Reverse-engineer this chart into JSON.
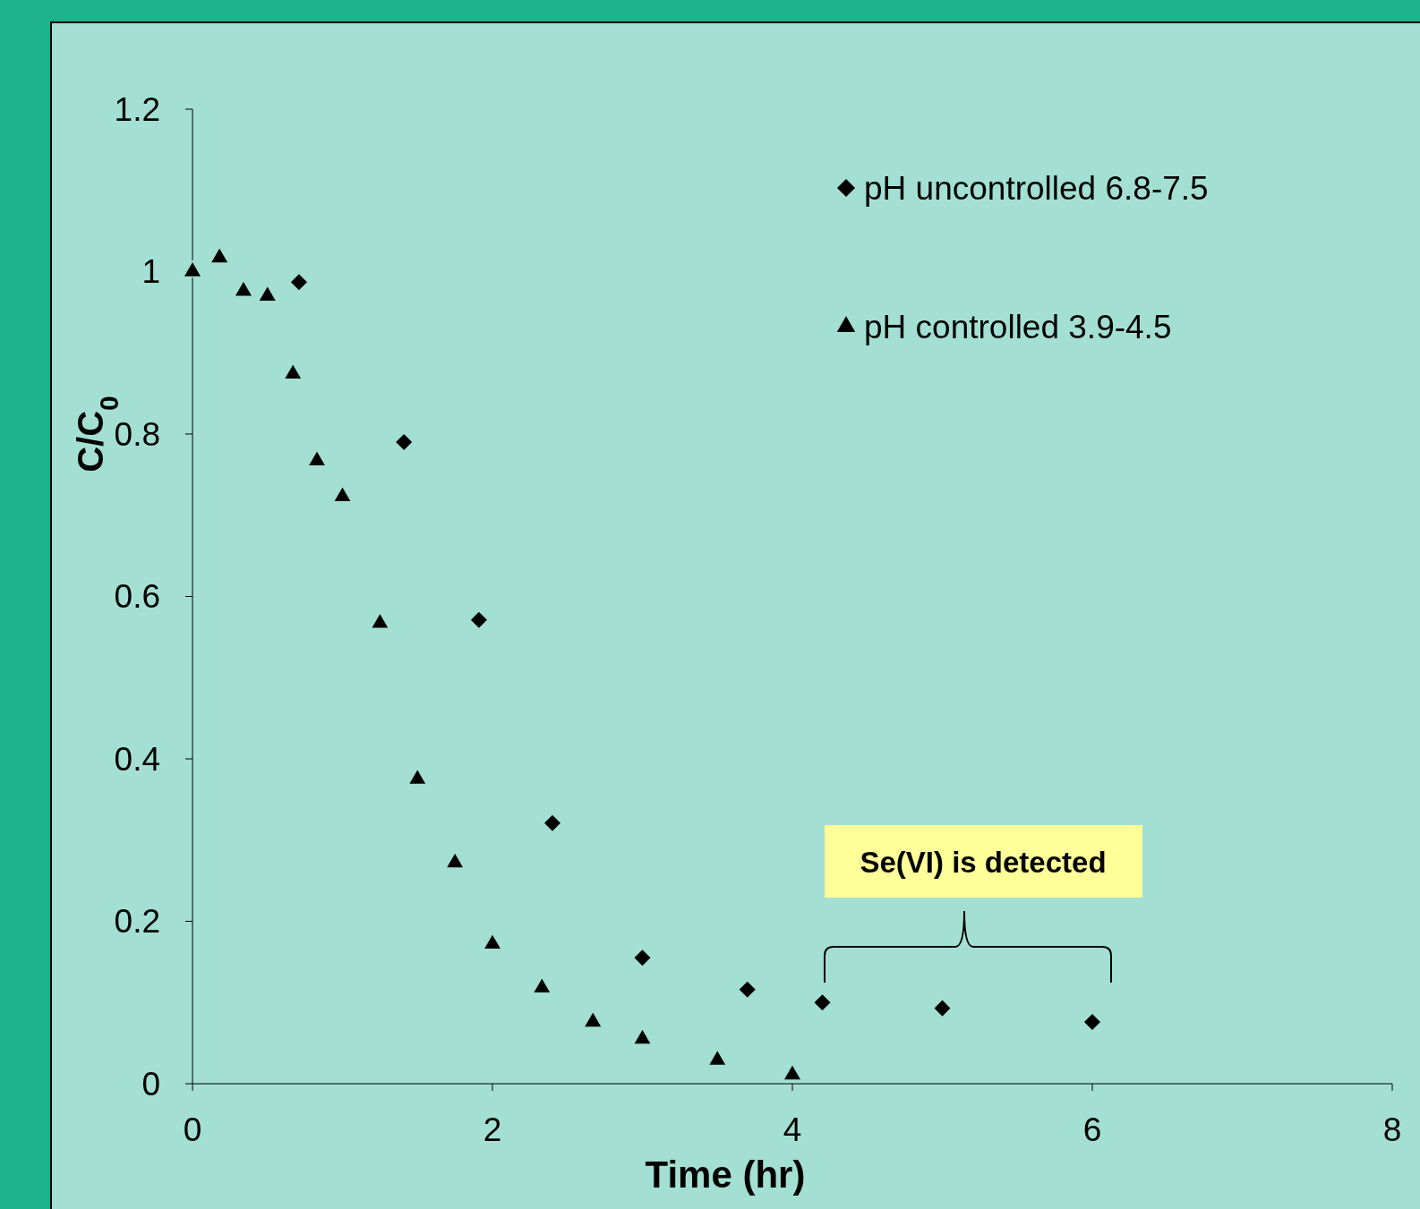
{
  "chart_data": {
    "type": "scatter",
    "xlabel": "Time (hr)",
    "ylabel": "C/C$_{0}$",
    "xlim": [
      0,
      8
    ],
    "xticks": [
      0,
      2,
      4,
      6,
      8
    ],
    "ylim": [
      0,
      1.2
    ],
    "yticks": [
      0,
      0.2,
      0.4,
      0.6,
      0.8,
      1,
      1.2
    ],
    "legend": "top right",
    "annotations": [
      "Se(VI) is detected"
    ],
    "series": [
      {
        "name": "pH uncontrolled 6.8-7.5",
        "color": "#000000",
        "marker": "diamond",
        "x": [
          0.71,
          1.41,
          1.91,
          2.4,
          3,
          3.7,
          4.2,
          5,
          6
        ],
        "values": [
          0.987,
          0.79,
          0.571,
          0.321,
          0.155,
          0.116,
          0.1,
          0.093,
          0.076
        ]
      },
      {
        "name": "pH controlled 3.9-4.5",
        "color": "#000000",
        "marker": "triangle",
        "x": [
          0,
          0.18,
          0.34,
          0.5,
          0.67,
          0.83,
          1,
          1.25,
          1.5,
          1.75,
          2,
          2.33,
          2.67,
          3,
          3.5,
          4
        ],
        "values": [
          1,
          1.017,
          0.976,
          0.97,
          0.874,
          0.767,
          0.723,
          0.567,
          0.375,
          0.272,
          0.172,
          0.118,
          0.076,
          0.055,
          0.029,
          0.011
        ]
      }
    ]
  }
}
